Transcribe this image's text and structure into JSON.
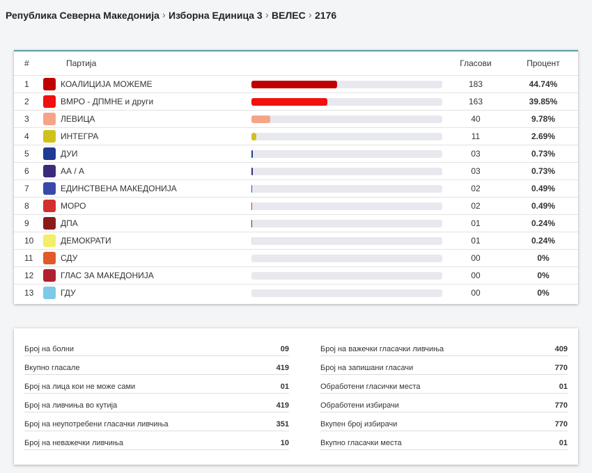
{
  "breadcrumb": [
    "Република Северна Македонија",
    "Изборна Единица 3",
    "ВЕЛЕС",
    "2176"
  ],
  "table": {
    "headers": [
      "#",
      "Партија",
      "Гласови",
      "Процент"
    ],
    "bar_range": [
      0,
      100
    ],
    "rows": [
      {
        "no": "1",
        "party": "КОАЛИЦИЈА МОЖЕМЕ",
        "votes": "183",
        "percent": {
          "value": 44.74,
          "label": "44.74%"
        },
        "color": "#c00000"
      },
      {
        "no": "2",
        "party": "ВМРО - ДПМНЕ и други",
        "votes": "163",
        "percent": {
          "value": 39.85,
          "label": "39.85%"
        },
        "color": "#f01010"
      },
      {
        "no": "3",
        "party": "ЛЕВИЦА",
        "votes": "40",
        "percent": {
          "value": 9.78,
          "label": "9.78%"
        },
        "color": "#f6a487"
      },
      {
        "no": "4",
        "party": "ИНТЕГРА",
        "votes": "11",
        "percent": {
          "value": 2.69,
          "label": "2.69%"
        },
        "color": "#cfc21c"
      },
      {
        "no": "5",
        "party": "ДУИ",
        "votes": "03",
        "percent": {
          "value": 0.73,
          "label": "0.73%"
        },
        "color": "#1f3a93"
      },
      {
        "no": "6",
        "party": "АА / А",
        "votes": "03",
        "percent": {
          "value": 0.73,
          "label": "0.73%"
        },
        "color": "#3b2a7a"
      },
      {
        "no": "7",
        "party": "ЕДИНСТВЕНА МАКЕДОНИЈА",
        "votes": "02",
        "percent": {
          "value": 0.49,
          "label": "0.49%"
        },
        "color": "#3949ab"
      },
      {
        "no": "8",
        "party": "МОРО",
        "votes": "02",
        "percent": {
          "value": 0.49,
          "label": "0.49%"
        },
        "color": "#d32f2f"
      },
      {
        "no": "9",
        "party": "ДПА",
        "votes": "01",
        "percent": {
          "value": 0.24,
          "label": "0.24%"
        },
        "color": "#8b1a1a"
      },
      {
        "no": "10",
        "party": "ДЕМОКРАТИ",
        "votes": "01",
        "percent": {
          "value": 0.24,
          "label": "0.24%"
        },
        "color": "#f3ee6a"
      },
      {
        "no": "11",
        "party": "СДУ",
        "votes": "00",
        "percent": {
          "value": 0,
          "label": "0%"
        },
        "color": "#e05a2a"
      },
      {
        "no": "12",
        "party": "ГЛАС ЗА МАКЕДОНИЈА",
        "votes": "00",
        "percent": {
          "value": 0,
          "label": "0%"
        },
        "color": "#b02030"
      },
      {
        "no": "13",
        "party": "ГДУ",
        "votes": "00",
        "percent": {
          "value": 0,
          "label": "0%"
        },
        "color": "#7ec8e8"
      }
    ]
  },
  "stats": {
    "left": [
      {
        "label": "Број на болни",
        "value": "09"
      },
      {
        "label": "Вкупно гласале",
        "value": "419"
      },
      {
        "label": "Број на лица кои не може сами",
        "value": "01"
      },
      {
        "label": "Број на ливчиња во кутија",
        "value": "419"
      },
      {
        "label": "Број на неупотребени гласачки ливчиња",
        "value": "351"
      },
      {
        "label": "Број на неважечки ливчиња",
        "value": "10"
      }
    ],
    "right": [
      {
        "label": "Број на важечки гласачки ливчиња",
        "value": "409"
      },
      {
        "label": "Број на запишани гласачи",
        "value": "770"
      },
      {
        "label": "Обработени гласички места",
        "value": "01"
      },
      {
        "label": "Обработени избирачи",
        "value": "770"
      },
      {
        "label": "Вкупен број избирачи",
        "value": "770"
      },
      {
        "label": "Вкупно гласачки места",
        "value": "01"
      }
    ]
  }
}
